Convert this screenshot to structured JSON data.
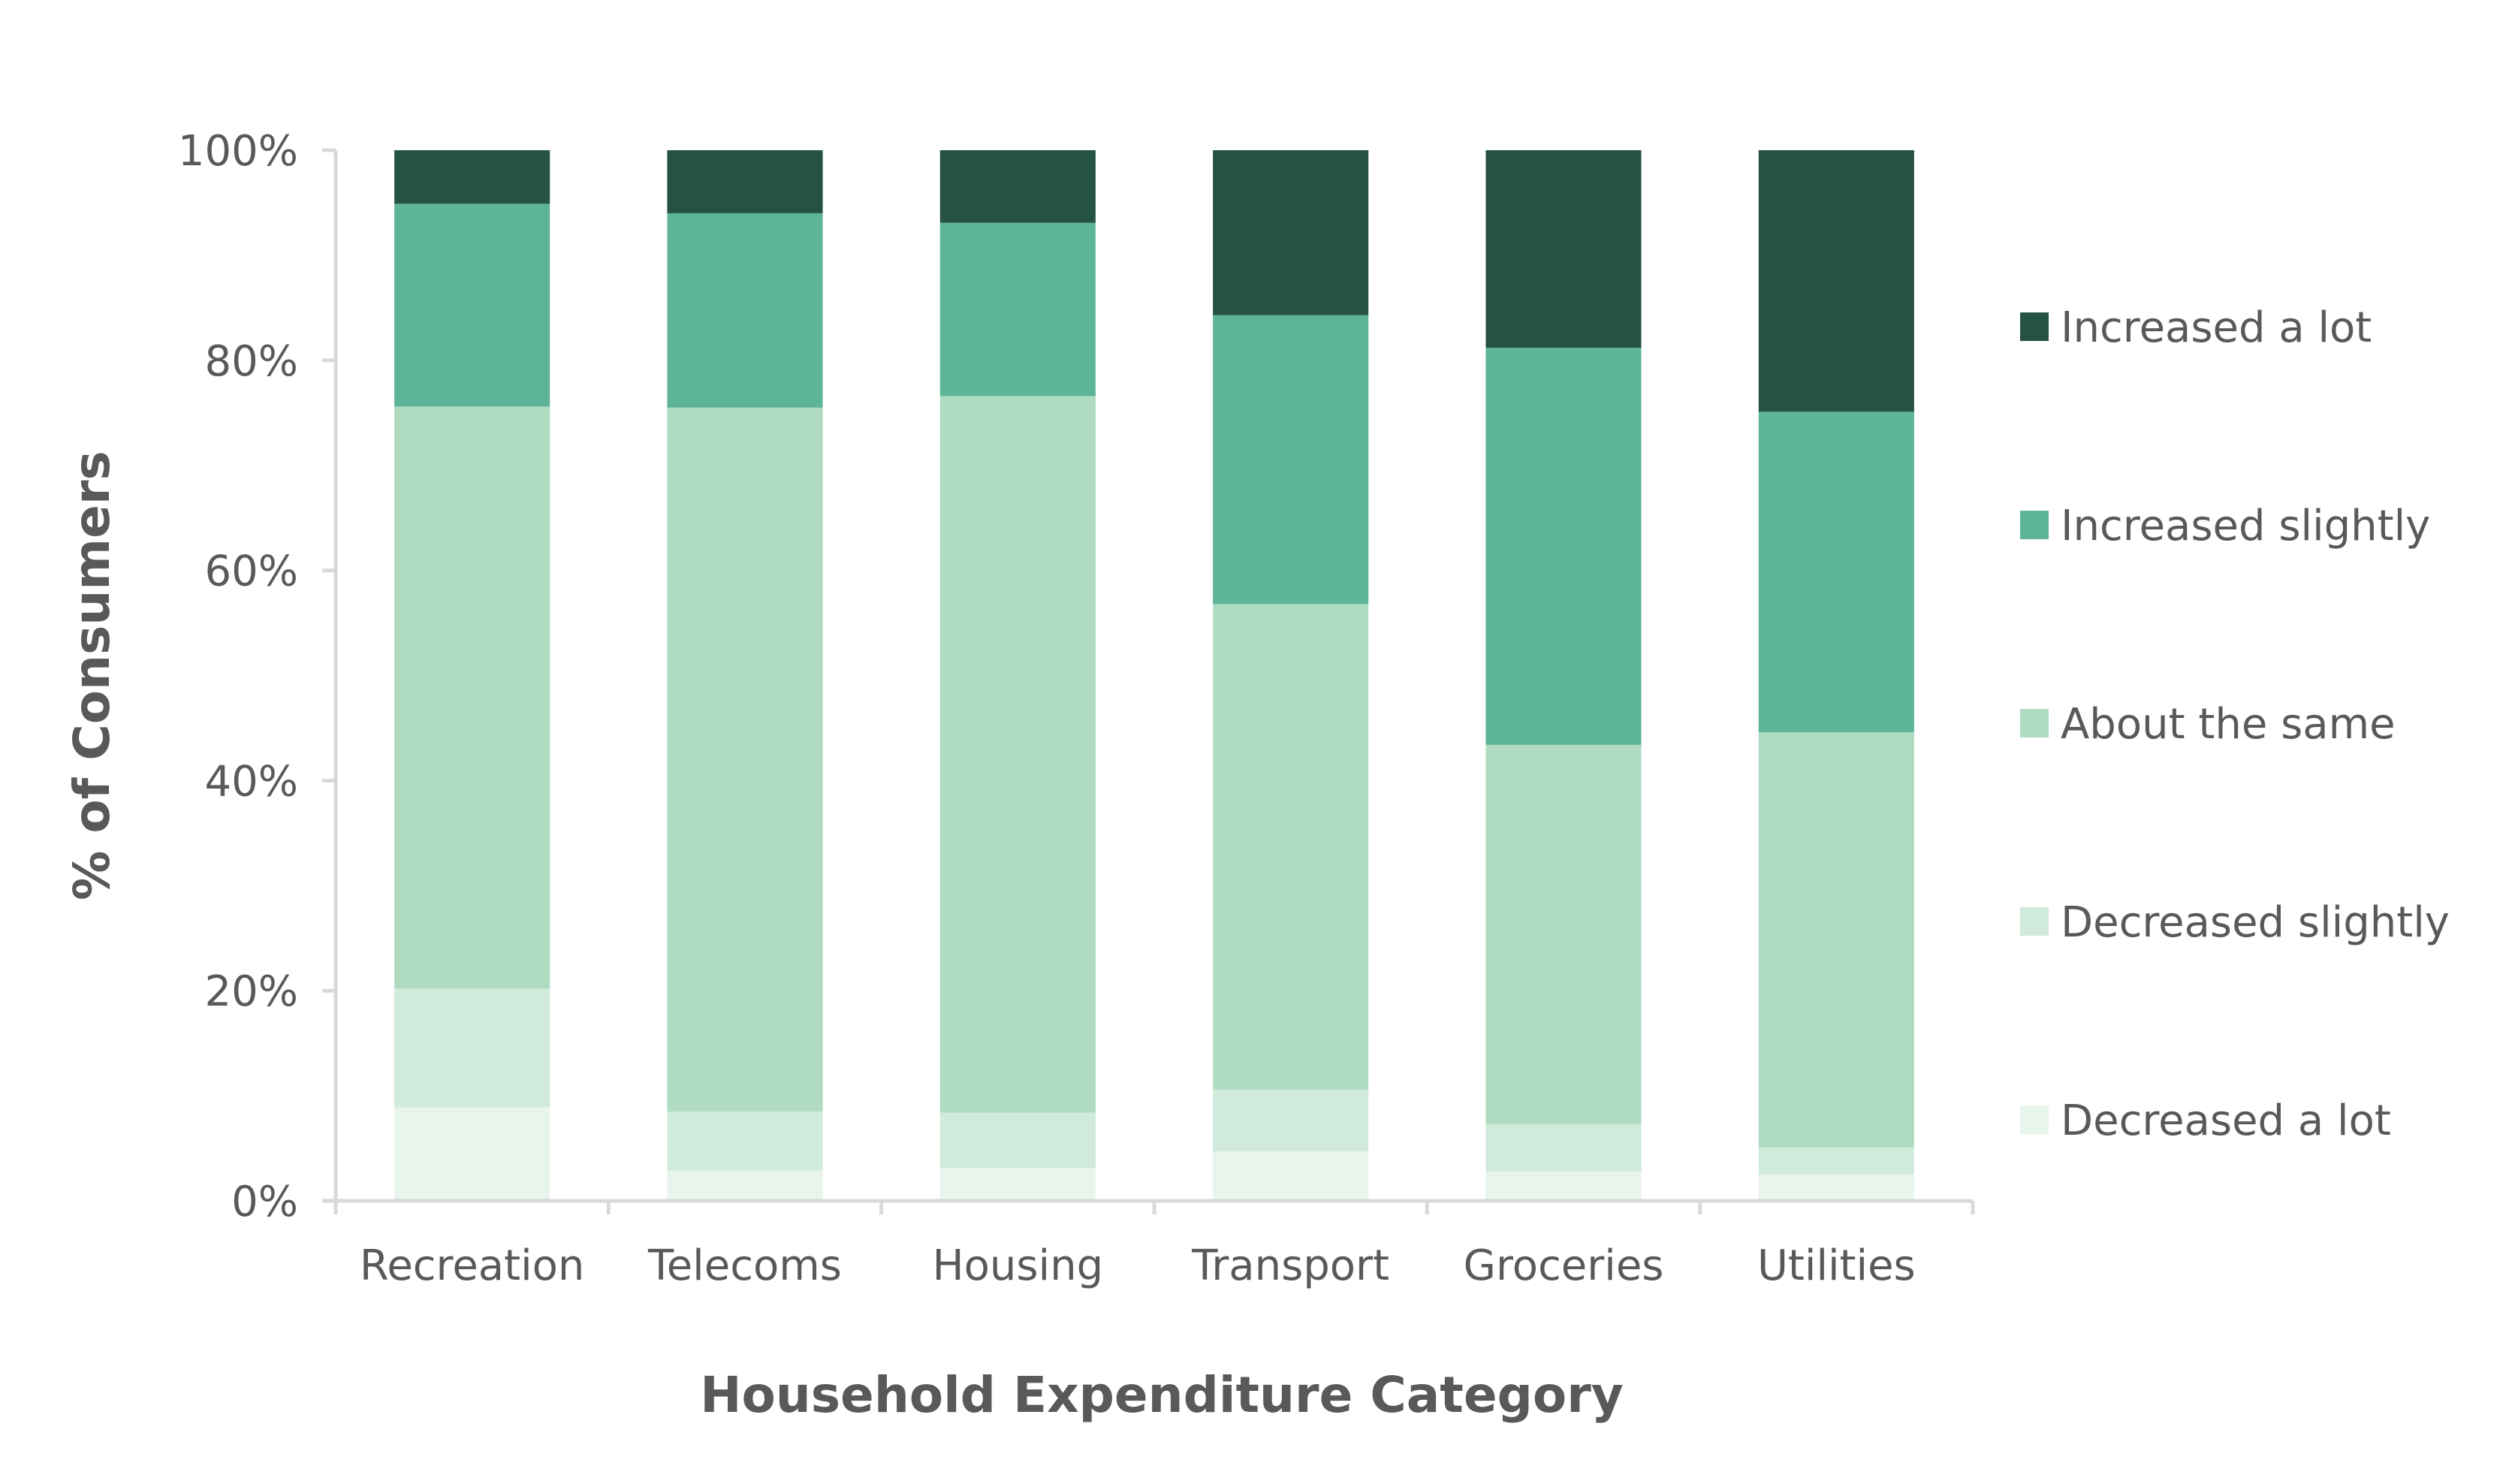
{
  "chart_data": {
    "type": "bar",
    "stacked": true,
    "percent_stacked": true,
    "title": "",
    "xlabel": "Household Expenditure Category",
    "ylabel": "% of Consumers",
    "ylim": [
      0,
      100
    ],
    "y_ticks": [
      "0%",
      "20%",
      "40%",
      "60%",
      "80%",
      "100%"
    ],
    "y_tick_values": [
      0,
      20,
      40,
      60,
      80,
      100
    ],
    "grid": false,
    "legend_position": "right",
    "categories": [
      "Recreation",
      "Telecoms",
      "Housing",
      "Transport",
      "Groceries",
      "Utilities"
    ],
    "series": [
      {
        "name": "Decreased a lot",
        "color": "#e8f5ec",
        "values": [
          8.9,
          2.9,
          3.1,
          4.7,
          2.8,
          2.5
        ]
      },
      {
        "name": "Decreased slightly",
        "color": "#d0eadb",
        "values": [
          11.3,
          5.6,
          5.3,
          5.9,
          4.5,
          2.6
        ]
      },
      {
        "name": "About the same",
        "color": "#afdcc0",
        "values": [
          55.4,
          67.0,
          68.2,
          46.2,
          36.1,
          39.5
        ]
      },
      {
        "name": "Increased slightly",
        "color": "#5eb496",
        "values": [
          19.3,
          18.5,
          16.5,
          27.5,
          37.8,
          30.5
        ]
      },
      {
        "name": "Increased a lot",
        "color": "#255244",
        "values": [
          5.1,
          6.0,
          6.9,
          15.7,
          18.8,
          24.9
        ]
      }
    ],
    "legend_order": [
      "Increased a lot",
      "Increased slightly",
      "About the same",
      "Decreased slightly",
      "Decreased a lot"
    ],
    "axis_color": "#d9d9d9",
    "text_color": "#595959"
  }
}
